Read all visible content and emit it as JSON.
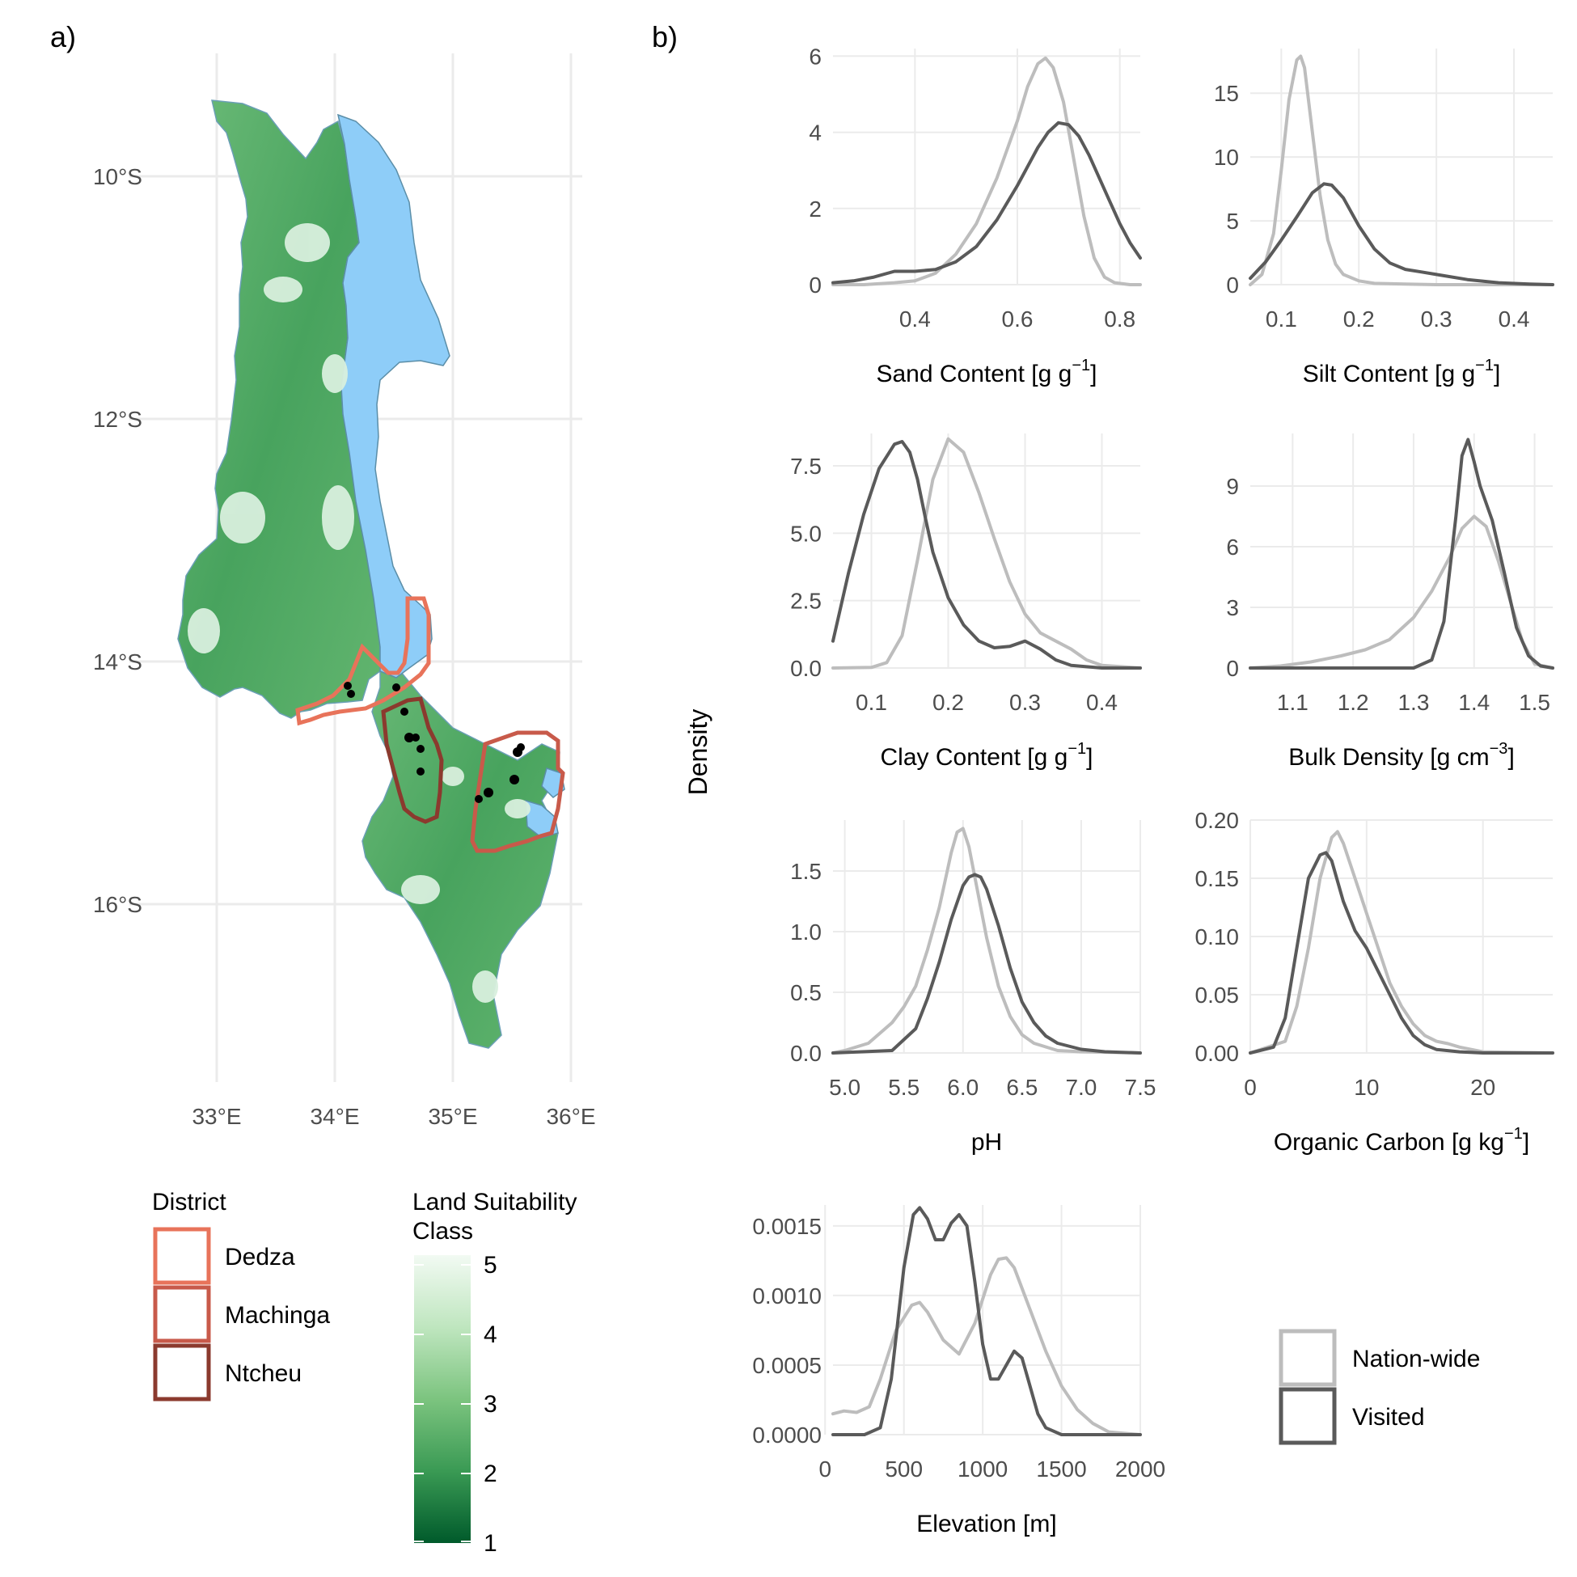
{
  "panel_labels": {
    "a": "a)",
    "b": "b)"
  },
  "colors": {
    "nation_wide": "#bdbdbd",
    "visited": "#5a5a5a",
    "grid": "#ebebeb",
    "lake": "#8ecdf8",
    "dedza": "#e8735a",
    "machinga": "#c85a4a",
    "ntcheu": "#8b3a2e"
  },
  "map": {
    "lon_ticks": [
      "33°E",
      "34°E",
      "35°E",
      "36°E"
    ],
    "lat_ticks": [
      "10°S",
      "12°S",
      "14°S",
      "16°S"
    ]
  },
  "legend_district": {
    "title": "District",
    "items": [
      {
        "label": "Dedza",
        "color": "#e8735a"
      },
      {
        "label": "Machinga",
        "color": "#c85a4a"
      },
      {
        "label": "Ntcheu",
        "color": "#8b3a2e"
      }
    ]
  },
  "legend_suitability": {
    "title_line1": "Land Suitability",
    "title_line2": "Class",
    "ticks": [
      "5",
      "4",
      "3",
      "2",
      "1"
    ]
  },
  "legend_series": {
    "items": [
      {
        "label": "Nation-wide",
        "color": "#bdbdbd"
      },
      {
        "label": "Visited",
        "color": "#5a5a5a"
      }
    ]
  },
  "y_axis_label": "Density",
  "chart_data": [
    {
      "type": "line",
      "xlabel": "Sand Content [g g",
      "xlabel_sup": "−1",
      "xlabel_end": "]",
      "xlim": [
        0.24,
        0.84
      ],
      "ylim": [
        0,
        6.2
      ],
      "xticks": [
        0.4,
        0.6,
        0.8
      ],
      "xtick_labels": [
        "0.4",
        "0.6",
        "0.8"
      ],
      "yticks": [
        0,
        2,
        4,
        6
      ],
      "ytick_labels": [
        "0",
        "2",
        "4",
        "6"
      ],
      "series": [
        {
          "name": "Nation-wide",
          "x": [
            0.24,
            0.3,
            0.36,
            0.4,
            0.44,
            0.48,
            0.52,
            0.56,
            0.6,
            0.62,
            0.64,
            0.655,
            0.67,
            0.69,
            0.71,
            0.73,
            0.75,
            0.77,
            0.79,
            0.82,
            0.84
          ],
          "y": [
            0,
            0,
            0.05,
            0.1,
            0.3,
            0.8,
            1.6,
            2.8,
            4.3,
            5.2,
            5.8,
            5.95,
            5.7,
            4.8,
            3.3,
            1.8,
            0.7,
            0.2,
            0.05,
            0,
            0
          ]
        },
        {
          "name": "Visited",
          "x": [
            0.24,
            0.28,
            0.32,
            0.36,
            0.4,
            0.44,
            0.48,
            0.52,
            0.56,
            0.6,
            0.64,
            0.66,
            0.68,
            0.7,
            0.72,
            0.74,
            0.76,
            0.78,
            0.8,
            0.82,
            0.84
          ],
          "y": [
            0.05,
            0.1,
            0.2,
            0.35,
            0.35,
            0.4,
            0.6,
            1.0,
            1.7,
            2.6,
            3.6,
            4.0,
            4.25,
            4.2,
            3.9,
            3.4,
            2.8,
            2.2,
            1.6,
            1.1,
            0.7
          ]
        }
      ]
    },
    {
      "type": "line",
      "xlabel": "Silt Content [g g",
      "xlabel_sup": "−1",
      "xlabel_end": "]",
      "xlim": [
        0.06,
        0.45
      ],
      "ylim": [
        0,
        18.5
      ],
      "xticks": [
        0.1,
        0.2,
        0.3,
        0.4
      ],
      "xtick_labels": [
        "0.1",
        "0.2",
        "0.3",
        "0.4"
      ],
      "yticks": [
        0,
        5,
        10,
        15
      ],
      "ytick_labels": [
        "0",
        "5",
        "10",
        "15"
      ],
      "series": [
        {
          "name": "Nation-wide",
          "x": [
            0.06,
            0.075,
            0.09,
            0.1,
            0.11,
            0.12,
            0.125,
            0.13,
            0.14,
            0.15,
            0.16,
            0.17,
            0.18,
            0.2,
            0.22,
            0.26,
            0.3,
            0.45
          ],
          "y": [
            0,
            0.8,
            4,
            9,
            14.5,
            17.6,
            17.9,
            17,
            12,
            7,
            3.5,
            1.6,
            0.8,
            0.3,
            0.1,
            0.05,
            0,
            0
          ]
        },
        {
          "name": "Visited",
          "x": [
            0.06,
            0.08,
            0.1,
            0.12,
            0.14,
            0.155,
            0.165,
            0.18,
            0.2,
            0.22,
            0.24,
            0.26,
            0.28,
            0.3,
            0.34,
            0.38,
            0.42,
            0.45
          ],
          "y": [
            0.5,
            1.8,
            3.5,
            5.3,
            7.2,
            7.9,
            7.8,
            6.8,
            4.6,
            2.8,
            1.7,
            1.2,
            1.0,
            0.8,
            0.4,
            0.15,
            0.05,
            0
          ]
        }
      ]
    },
    {
      "type": "line",
      "xlabel": "Clay Content [g g",
      "xlabel_sup": "−1",
      "xlabel_end": "]",
      "xlim": [
        0.05,
        0.45
      ],
      "ylim": [
        0,
        8.7
      ],
      "xticks": [
        0.1,
        0.2,
        0.3,
        0.4
      ],
      "xtick_labels": [
        "0.1",
        "0.2",
        "0.3",
        "0.4"
      ],
      "yticks": [
        0,
        2.5,
        5.0,
        7.5
      ],
      "ytick_labels": [
        "0.0",
        "2.5",
        "5.0",
        "7.5"
      ],
      "series": [
        {
          "name": "Nation-wide",
          "x": [
            0.05,
            0.1,
            0.12,
            0.14,
            0.16,
            0.18,
            0.2,
            0.22,
            0.24,
            0.26,
            0.28,
            0.3,
            0.32,
            0.34,
            0.36,
            0.38,
            0.4,
            0.45
          ],
          "y": [
            0,
            0.02,
            0.2,
            1.2,
            4.0,
            7.0,
            8.5,
            8.0,
            6.5,
            4.8,
            3.2,
            2.0,
            1.3,
            1.0,
            0.7,
            0.3,
            0.1,
            0
          ]
        },
        {
          "name": "Visited",
          "x": [
            0.05,
            0.07,
            0.09,
            0.11,
            0.13,
            0.14,
            0.15,
            0.16,
            0.17,
            0.18,
            0.2,
            0.22,
            0.24,
            0.26,
            0.28,
            0.3,
            0.32,
            0.34,
            0.36,
            0.4,
            0.45
          ],
          "y": [
            1.0,
            3.5,
            5.7,
            7.4,
            8.3,
            8.4,
            8.0,
            7.0,
            5.6,
            4.3,
            2.6,
            1.6,
            1.0,
            0.75,
            0.8,
            1.0,
            0.7,
            0.3,
            0.1,
            0,
            0
          ]
        }
      ]
    },
    {
      "type": "line",
      "xlabel": "Bulk Density [g cm",
      "xlabel_sup": "−3",
      "xlabel_end": "]",
      "xlim": [
        1.03,
        1.53
      ],
      "ylim": [
        0,
        11.6
      ],
      "xticks": [
        1.1,
        1.2,
        1.3,
        1.4,
        1.5
      ],
      "xtick_labels": [
        "1.1",
        "1.2",
        "1.3",
        "1.4",
        "1.5"
      ],
      "yticks": [
        0,
        3,
        6,
        9
      ],
      "ytick_labels": [
        "0",
        "3",
        "6",
        "9"
      ],
      "series": [
        {
          "name": "Nation-wide",
          "x": [
            1.03,
            1.08,
            1.13,
            1.18,
            1.22,
            1.26,
            1.3,
            1.33,
            1.36,
            1.38,
            1.4,
            1.42,
            1.44,
            1.46,
            1.48,
            1.5,
            1.53
          ],
          "y": [
            0,
            0.1,
            0.3,
            0.6,
            0.9,
            1.4,
            2.5,
            3.8,
            5.5,
            6.9,
            7.5,
            7.0,
            5.3,
            3.3,
            1.3,
            0.2,
            0
          ]
        },
        {
          "name": "Visited",
          "x": [
            1.03,
            1.3,
            1.33,
            1.35,
            1.37,
            1.38,
            1.39,
            1.4,
            1.41,
            1.43,
            1.45,
            1.47,
            1.49,
            1.51,
            1.53
          ],
          "y": [
            0,
            0,
            0.4,
            2.3,
            7.5,
            10.5,
            11.3,
            10.2,
            9.0,
            7.3,
            4.7,
            2.0,
            0.6,
            0.1,
            0
          ]
        }
      ]
    },
    {
      "type": "line",
      "xlabel": "pH",
      "xlabel_sup": "",
      "xlabel_end": "",
      "xlim": [
        4.9,
        7.5
      ],
      "ylim": [
        0,
        1.92
      ],
      "xticks": [
        5.0,
        5.5,
        6.0,
        6.5,
        7.0,
        7.5
      ],
      "xtick_labels": [
        "5.0",
        "5.5",
        "6.0",
        "6.5",
        "7.0",
        "7.5"
      ],
      "yticks": [
        0,
        0.5,
        1.0,
        1.5
      ],
      "ytick_labels": [
        "0.0",
        "0.5",
        "1.0",
        "1.5"
      ],
      "series": [
        {
          "name": "Nation-wide",
          "x": [
            4.9,
            5.0,
            5.2,
            5.4,
            5.5,
            5.6,
            5.7,
            5.8,
            5.9,
            5.95,
            6.0,
            6.05,
            6.1,
            6.2,
            6.3,
            6.4,
            6.5,
            6.6,
            6.8,
            7.0,
            7.5
          ],
          "y": [
            0,
            0.02,
            0.08,
            0.25,
            0.38,
            0.55,
            0.85,
            1.2,
            1.65,
            1.82,
            1.85,
            1.7,
            1.45,
            0.95,
            0.55,
            0.3,
            0.15,
            0.08,
            0.02,
            0.01,
            0
          ]
        },
        {
          "name": "Visited",
          "x": [
            4.9,
            5.4,
            5.6,
            5.7,
            5.8,
            5.9,
            6.0,
            6.05,
            6.1,
            6.15,
            6.2,
            6.3,
            6.4,
            6.5,
            6.6,
            6.7,
            6.8,
            7.0,
            7.2,
            7.5
          ],
          "y": [
            0,
            0.02,
            0.2,
            0.45,
            0.75,
            1.1,
            1.38,
            1.45,
            1.47,
            1.45,
            1.35,
            1.05,
            0.7,
            0.42,
            0.25,
            0.14,
            0.08,
            0.03,
            0.01,
            0
          ]
        }
      ]
    },
    {
      "type": "line",
      "xlabel": "Organic Carbon [g kg",
      "xlabel_sup": "−1",
      "xlabel_end": "]",
      "xlim": [
        0,
        26
      ],
      "ylim": [
        0,
        0.2
      ],
      "xticks": [
        0,
        10,
        20
      ],
      "xtick_labels": [
        "0",
        "10",
        "20"
      ],
      "yticks": [
        0,
        0.05,
        0.1,
        0.15,
        0.2
      ],
      "ytick_labels": [
        "0.00",
        "0.05",
        "0.10",
        "0.15",
        "0.20"
      ],
      "series": [
        {
          "name": "Nation-wide",
          "x": [
            0,
            3,
            4,
            5,
            6,
            7,
            7.5,
            8,
            9,
            10,
            11,
            12,
            13,
            14,
            15,
            16,
            17,
            18,
            20,
            26
          ],
          "y": [
            0,
            0.01,
            0.04,
            0.09,
            0.15,
            0.185,
            0.19,
            0.18,
            0.15,
            0.12,
            0.09,
            0.06,
            0.04,
            0.025,
            0.015,
            0.01,
            0.008,
            0.005,
            0.001,
            0
          ]
        },
        {
          "name": "Visited",
          "x": [
            0,
            2,
            3,
            4,
            5,
            6,
            6.5,
            7,
            8,
            9,
            10,
            11,
            12,
            13,
            14,
            15,
            16,
            18,
            20,
            26
          ],
          "y": [
            0,
            0.005,
            0.03,
            0.09,
            0.15,
            0.17,
            0.172,
            0.165,
            0.13,
            0.105,
            0.09,
            0.07,
            0.05,
            0.03,
            0.015,
            0.007,
            0.003,
            0.001,
            0,
            0
          ]
        }
      ]
    },
    {
      "type": "line",
      "xlabel": "Elevation [m]",
      "xlabel_sup": "",
      "xlabel_end": "",
      "xlim": [
        50,
        2000
      ],
      "ylim": [
        0,
        0.00165
      ],
      "xticks": [
        0,
        500,
        1000,
        1500,
        2000
      ],
      "xtick_labels": [
        "0",
        "500",
        "1000",
        "1500",
        "2000"
      ],
      "yticks": [
        0,
        0.0005,
        0.001,
        0.0015
      ],
      "ytick_labels": [
        "0.0000",
        "0.0005",
        "0.0010",
        "0.0015"
      ],
      "series": [
        {
          "name": "Nation-wide",
          "x": [
            50,
            120,
            200,
            280,
            350,
            450,
            550,
            600,
            650,
            750,
            850,
            950,
            1050,
            1100,
            1150,
            1200,
            1300,
            1400,
            1500,
            1600,
            1700,
            1800,
            2000
          ],
          "y": [
            0.00015,
            0.00017,
            0.00016,
            0.0002,
            0.0004,
            0.00075,
            0.00093,
            0.00095,
            0.00088,
            0.00068,
            0.00058,
            0.0008,
            0.00115,
            0.00126,
            0.00127,
            0.0012,
            0.0009,
            0.0006,
            0.00035,
            0.00018,
            8e-05,
            2e-05,
            0
          ]
        },
        {
          "name": "Visited",
          "x": [
            50,
            250,
            350,
            420,
            500,
            560,
            600,
            650,
            700,
            750,
            800,
            850,
            900,
            950,
            1000,
            1050,
            1100,
            1150,
            1200,
            1250,
            1300,
            1350,
            1400,
            1500,
            1600,
            2000
          ],
          "y": [
            0,
            0,
            5e-05,
            0.0004,
            0.0012,
            0.00158,
            0.00163,
            0.00155,
            0.0014,
            0.0014,
            0.00152,
            0.00158,
            0.0015,
            0.0011,
            0.00065,
            0.0004,
            0.0004,
            0.0005,
            0.0006,
            0.00055,
            0.00035,
            0.00015,
            5e-05,
            0,
            0,
            0
          ]
        }
      ]
    }
  ]
}
